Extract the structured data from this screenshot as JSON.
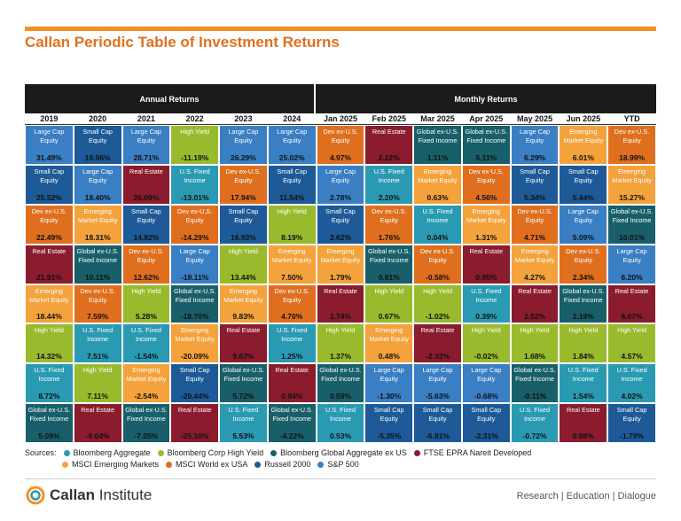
{
  "header": {
    "title": "Callan Periodic Table of Investment Returns"
  },
  "table": {
    "groups": [
      "Annual Returns",
      "Monthly Returns"
    ],
    "colors": {
      "Large Cap Equity": "#3a7ec3",
      "Small Cap Equity": "#1d5a97",
      "Dev ex-U.S. Equity": "#df6f1f",
      "Emerging Market Equity": "#f4a23b",
      "Real Estate": "#8a1c2e",
      "High Yield": "#9aba2d",
      "U.S. Fixed Income": "#2a9ab2",
      "Global ex-U.S. Fixed Income": "#185f69"
    },
    "columns": [
      {
        "header": "2019",
        "cells": [
          [
            "Large Cap Equity",
            "31.49%"
          ],
          [
            "Small Cap Equity",
            "25.52%"
          ],
          [
            "Dev ex-U.S. Equity",
            "22.49%"
          ],
          [
            "Real Estate",
            "21.91%"
          ],
          [
            "Emerging Market Equity",
            "18.44%"
          ],
          [
            "High Yield",
            "14.32%"
          ],
          [
            "U.S. Fixed Income",
            "8.72%"
          ],
          [
            "Global ex-U.S. Fixed Income",
            "5.09%"
          ]
        ]
      },
      {
        "header": "2020",
        "cells": [
          [
            "Small Cap Equity",
            "19.96%"
          ],
          [
            "Large Cap Equity",
            "18.40%"
          ],
          [
            "Emerging Market Equity",
            "18.31%"
          ],
          [
            "Global ex-U.S. Fixed Income",
            "10.11%"
          ],
          [
            "Dev ex-U.S. Equity",
            "7.59%"
          ],
          [
            "U.S. Fixed Income",
            "7.51%"
          ],
          [
            "High Yield",
            "7.11%"
          ],
          [
            "Real Estate",
            "-9.04%"
          ]
        ]
      },
      {
        "header": "2021",
        "cells": [
          [
            "Large Cap Equity",
            "28.71%"
          ],
          [
            "Real Estate",
            "26.09%"
          ],
          [
            "Small Cap Equity",
            "14.82%"
          ],
          [
            "Dev ex-U.S. Equity",
            "12.62%"
          ],
          [
            "High Yield",
            "5.28%"
          ],
          [
            "U.S. Fixed Income",
            "-1.54%"
          ],
          [
            "Emerging Market Equity",
            "-2.54%"
          ],
          [
            "Global ex-U.S. Fixed Income",
            "-7.05%"
          ]
        ]
      },
      {
        "header": "2022",
        "cells": [
          [
            "High Yield",
            "-11.19%"
          ],
          [
            "U.S. Fixed Income",
            "-13.01%"
          ],
          [
            "Dev ex-U.S. Equity",
            "-14.29%"
          ],
          [
            "Large Cap Equity",
            "-18.11%"
          ],
          [
            "Global ex-U.S. Fixed Income",
            "-18.70%"
          ],
          [
            "Emerging Market Equity",
            "-20.09%"
          ],
          [
            "Small Cap Equity",
            "-20.44%"
          ],
          [
            "Real Estate",
            "-25.10%"
          ]
        ]
      },
      {
        "header": "2023",
        "cells": [
          [
            "Large Cap Equity",
            "26.29%"
          ],
          [
            "Dev ex-U.S. Equity",
            "17.94%"
          ],
          [
            "Small Cap Equity",
            "16.93%"
          ],
          [
            "High Yield",
            "13.44%"
          ],
          [
            "Emerging Market Equity",
            "9.83%"
          ],
          [
            "Real Estate",
            "9.67%"
          ],
          [
            "Global ex-U.S. Fixed Income",
            "5.72%"
          ],
          [
            "U.S. Fixed Income",
            "5.53%"
          ]
        ]
      },
      {
        "header": "2024",
        "cells": [
          [
            "Large Cap Equity",
            "25.02%"
          ],
          [
            "Small Cap Equity",
            "11.54%"
          ],
          [
            "High Yield",
            "8.19%"
          ],
          [
            "Emerging Market Equity",
            "7.50%"
          ],
          [
            "Dev ex-U.S. Equity",
            "4.70%"
          ],
          [
            "U.S. Fixed Income",
            "1.25%"
          ],
          [
            "Real Estate",
            "0.94%"
          ],
          [
            "Global ex-U.S. Fixed Income",
            "-4.22%"
          ]
        ]
      },
      {
        "header": "Jan 2025",
        "cells": [
          [
            "Dev ex-U.S. Equity",
            "4.97%"
          ],
          [
            "Large Cap Equity",
            "2.78%"
          ],
          [
            "Small Cap Equity",
            "2.62%"
          ],
          [
            "Emerging Market Equity",
            "1.79%"
          ],
          [
            "Real Estate",
            "1.74%"
          ],
          [
            "High Yield",
            "1.37%"
          ],
          [
            "Global ex-U.S. Fixed Income",
            "0.59%"
          ],
          [
            "U.S. Fixed Income",
            "0.53%"
          ]
        ]
      },
      {
        "header": "Feb 2025",
        "cells": [
          [
            "Real Estate",
            "2.22%"
          ],
          [
            "U.S. Fixed Income",
            "2.20%"
          ],
          [
            "Dev ex-U.S. Equity",
            "1.76%"
          ],
          [
            "Global ex-U.S. Fixed Income",
            "0.81%"
          ],
          [
            "High Yield",
            "0.67%"
          ],
          [
            "Emerging Market Equity",
            "0.48%"
          ],
          [
            "Large Cap Equity",
            "-1.30%"
          ],
          [
            "Small Cap Equity",
            "-5.35%"
          ]
        ]
      },
      {
        "header": "Mar 2025",
        "cells": [
          [
            "Global ex-U.S. Fixed Income",
            "1.11%"
          ],
          [
            "Emerging Market Equity",
            "0.63%"
          ],
          [
            "U.S. Fixed Income",
            "0.04%"
          ],
          [
            "Dev ex-U.S. Equity",
            "-0.58%"
          ],
          [
            "High Yield",
            "-1.02%"
          ],
          [
            "Real Estate",
            "-2.32%"
          ],
          [
            "Large Cap Equity",
            "-5.63%"
          ],
          [
            "Small Cap Equity",
            "-6.81%"
          ]
        ]
      },
      {
        "header": "Apr 2025",
        "cells": [
          [
            "Global ex-U.S. Fixed Income",
            "5.11%"
          ],
          [
            "Dev ex-U.S. Equity",
            "4.56%"
          ],
          [
            "Emerging Market Equity",
            "1.31%"
          ],
          [
            "Real Estate",
            "0.95%"
          ],
          [
            "U.S. Fixed Income",
            "0.39%"
          ],
          [
            "High Yield",
            "-0.02%"
          ],
          [
            "Large Cap Equity",
            "-0.68%"
          ],
          [
            "Small Cap Equity",
            "-2.31%"
          ]
        ]
      },
      {
        "header": "May 2025",
        "cells": [
          [
            "Large Cap Equity",
            "6.29%"
          ],
          [
            "Small Cap Equity",
            "5.34%"
          ],
          [
            "Dev ex-U.S. Equity",
            "4.71%"
          ],
          [
            "Emerging Market Equity",
            "4.27%"
          ],
          [
            "Real Estate",
            "2.52%"
          ],
          [
            "High Yield",
            "1.68%"
          ],
          [
            "Global ex-U.S. Fixed Income",
            "-0.11%"
          ],
          [
            "U.S. Fixed Income",
            "-0.72%"
          ]
        ]
      },
      {
        "header": "Jun 2025",
        "cells": [
          [
            "Emerging Market Equity",
            "6.01%"
          ],
          [
            "Small Cap Equity",
            "5.44%"
          ],
          [
            "Large Cap Equity",
            "5.09%"
          ],
          [
            "Dev ex-U.S. Equity",
            "2.34%"
          ],
          [
            "Global ex-U.S. Fixed Income",
            "2.19%"
          ],
          [
            "High Yield",
            "1.84%"
          ],
          [
            "U.S. Fixed Income",
            "1.54%"
          ],
          [
            "Real Estate",
            "0.88%"
          ]
        ]
      },
      {
        "header": "YTD",
        "cells": [
          [
            "Dev ex-U.S. Equity",
            "18.99%"
          ],
          [
            "Emerging Market Equity",
            "15.27%"
          ],
          [
            "Global ex-U.S. Fixed Income",
            "10.01%"
          ],
          [
            "Large Cap Equity",
            "6.20%"
          ],
          [
            "Real Estate",
            "6.07%"
          ],
          [
            "High Yield",
            "4.57%"
          ],
          [
            "U.S. Fixed Income",
            "4.02%"
          ],
          [
            "Small Cap Equity",
            "-1.79%"
          ]
        ]
      }
    ]
  },
  "sources": {
    "label": "Sources:",
    "items": [
      {
        "name": "Bloomberg Aggregate",
        "color": "#2a9ab2"
      },
      {
        "name": "Bloomberg Corp High Yield",
        "color": "#9aba2d"
      },
      {
        "name": "Bloomberg Global Aggregate ex US",
        "color": "#185f69"
      },
      {
        "name": "FTSE EPRA Nareit Developed",
        "color": "#8a1c2e"
      },
      {
        "name": "MSCI Emerging Markets",
        "color": "#f4a23b"
      },
      {
        "name": "MSCI World ex USA",
        "color": "#df6f1f"
      },
      {
        "name": "Russell 2000",
        "color": "#1d5a97"
      },
      {
        "name": "S&P 500",
        "color": "#3a7ec3"
      }
    ]
  },
  "footer": {
    "brand": "Callan",
    "brand2": "Institute",
    "tagline": "Research | Education | Dialogue"
  }
}
